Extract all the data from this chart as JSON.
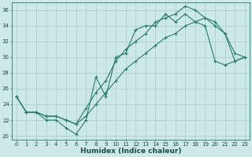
{
  "title": "",
  "xlabel": "Humidex (Indice chaleur)",
  "background_color": "#cce8e8",
  "grid_color": "#aacccc",
  "line_color": "#2a7a6e",
  "xlim": [
    -0.5,
    23.5
  ],
  "ylim": [
    19.5,
    37
  ],
  "yticks": [
    20,
    22,
    24,
    26,
    28,
    30,
    32,
    34,
    36
  ],
  "xticks": [
    0,
    1,
    2,
    3,
    4,
    5,
    6,
    7,
    8,
    9,
    10,
    11,
    12,
    13,
    14,
    15,
    16,
    17,
    18,
    19,
    20,
    21,
    22,
    23
  ],
  "line1_x": [
    0,
    1,
    2,
    3,
    4,
    5,
    6,
    7,
    8,
    9,
    10,
    11,
    12,
    13,
    14,
    15,
    16,
    17,
    18,
    19,
    20,
    21,
    22,
    23
  ],
  "line1_y": [
    25.0,
    23.0,
    23.0,
    22.0,
    22.0,
    21.0,
    20.2,
    22.0,
    27.5,
    25.0,
    30.0,
    30.5,
    33.5,
    34.0,
    34.0,
    35.5,
    34.5,
    35.5,
    34.5,
    34.0,
    29.5,
    29.0,
    29.5,
    30.0
  ],
  "line2_x": [
    0,
    1,
    2,
    3,
    4,
    5,
    6,
    7,
    8,
    9,
    10,
    11,
    12,
    13,
    14,
    15,
    16,
    17,
    18,
    19,
    20,
    21,
    22,
    23
  ],
  "line2_y": [
    25.0,
    23.0,
    23.0,
    22.5,
    22.5,
    22.0,
    21.5,
    23.5,
    25.5,
    27.0,
    29.5,
    31.0,
    32.0,
    33.0,
    34.5,
    35.0,
    35.5,
    36.5,
    36.0,
    35.0,
    34.0,
    33.0,
    30.5,
    30.0
  ],
  "line3_x": [
    0,
    1,
    2,
    3,
    4,
    5,
    6,
    7,
    8,
    9,
    10,
    11,
    12,
    13,
    14,
    15,
    16,
    17,
    18,
    19,
    20,
    21,
    22,
    23
  ],
  "line3_y": [
    25.0,
    23.0,
    23.0,
    22.5,
    22.5,
    22.0,
    21.5,
    22.5,
    24.0,
    25.5,
    27.0,
    28.5,
    29.5,
    30.5,
    31.5,
    32.5,
    33.0,
    34.0,
    34.5,
    35.0,
    34.5,
    33.0,
    29.5,
    30.0
  ],
  "tick_fontsize": 5,
  "xlabel_fontsize": 6.5
}
